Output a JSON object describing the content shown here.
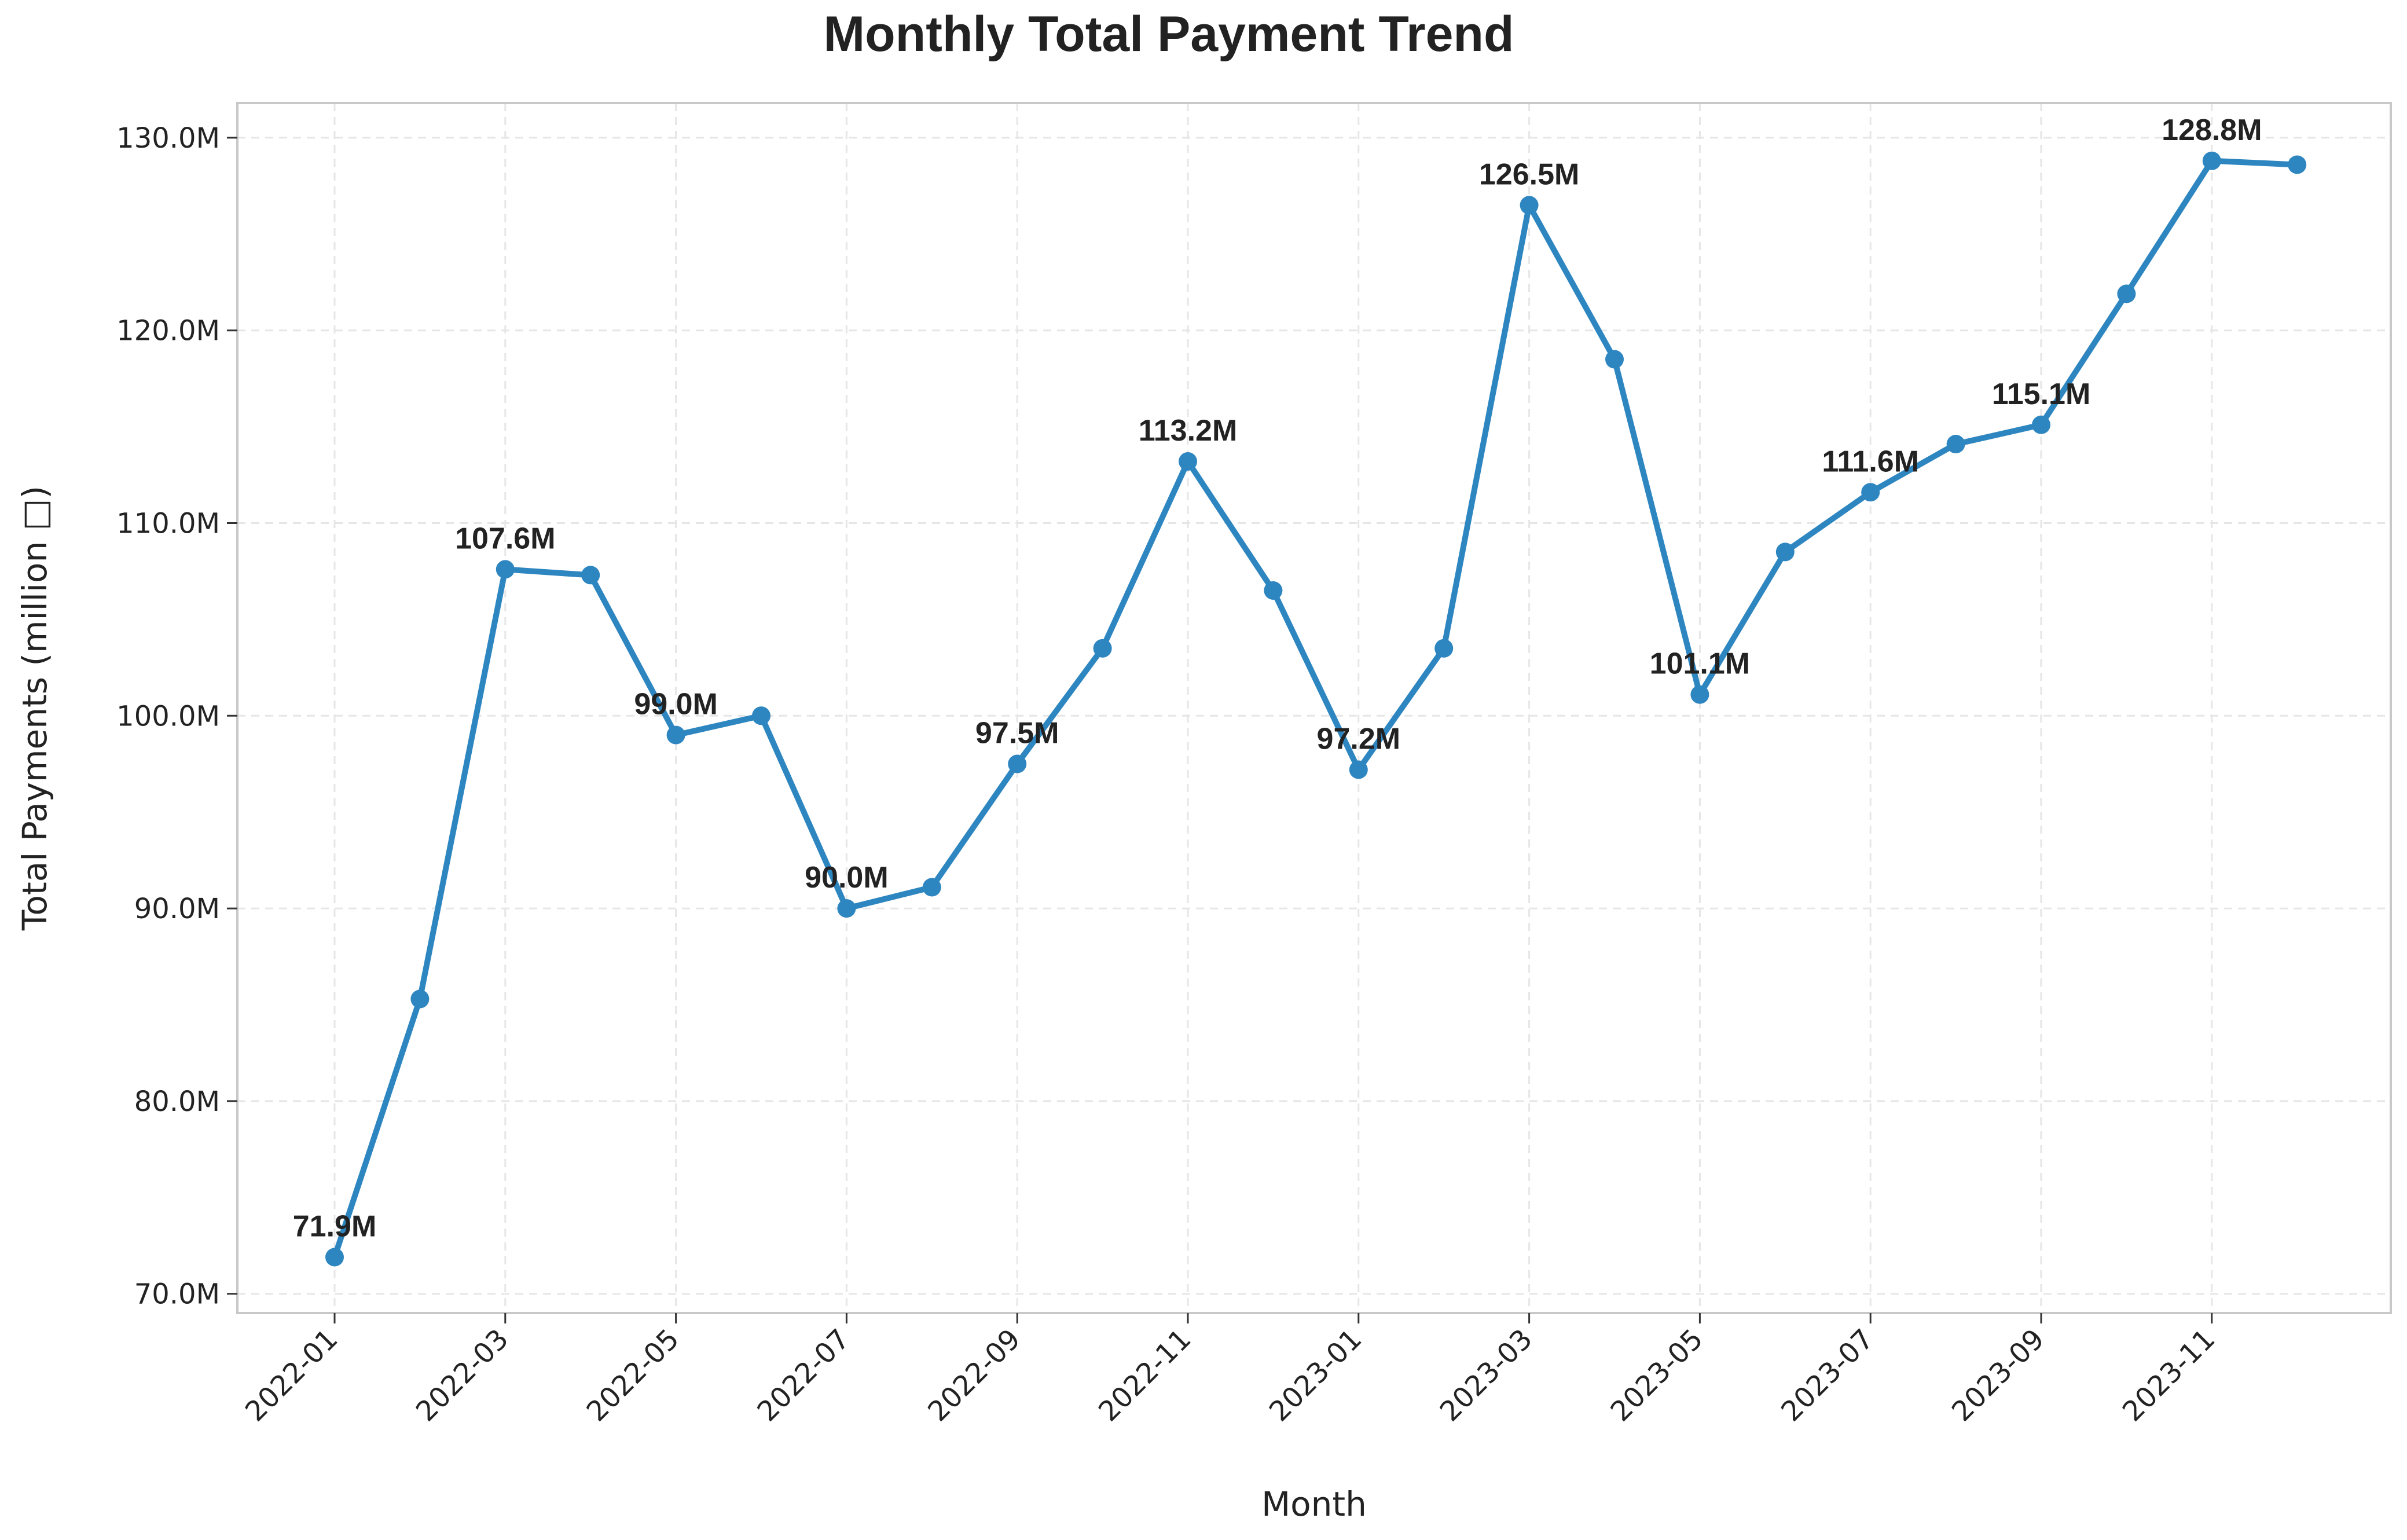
{
  "colors": {
    "line": "#2e86c1",
    "marker": "#2e86c1",
    "text": "#222222",
    "grid": "#e6e6e6",
    "frame": "#c8c8c8"
  },
  "chart_data": {
    "type": "line",
    "title": "Monthly Total Payment Trend",
    "xlabel": "Month",
    "ylabel": "Total Payments (million □)",
    "ylim": [
      69.0,
      131.8
    ],
    "grid": true,
    "y_ticks": [
      {
        "value": 70,
        "label": "70.0M"
      },
      {
        "value": 80,
        "label": "80.0M"
      },
      {
        "value": 90,
        "label": "90.0M"
      },
      {
        "value": 100,
        "label": "100.0M"
      },
      {
        "value": 110,
        "label": "110.0M"
      },
      {
        "value": 120,
        "label": "120.0M"
      },
      {
        "value": 130,
        "label": "130.0M"
      }
    ],
    "x_ticks": [
      "2022-01",
      "2022-03",
      "2022-05",
      "2022-07",
      "2022-09",
      "2022-11",
      "2023-01",
      "2023-03",
      "2023-05",
      "2023-07",
      "2023-09",
      "2023-11"
    ],
    "x": [
      "2022-01",
      "2022-02",
      "2022-03",
      "2022-04",
      "2022-05",
      "2022-06",
      "2022-07",
      "2022-08",
      "2022-09",
      "2022-10",
      "2022-11",
      "2022-12",
      "2023-01",
      "2023-02",
      "2023-03",
      "2023-04",
      "2023-05",
      "2023-06",
      "2023-07",
      "2023-08",
      "2023-09",
      "2023-10",
      "2023-11",
      "2023-12"
    ],
    "series": [
      {
        "values": [
          71.9,
          85.3,
          107.6,
          107.3,
          99.0,
          100.0,
          90.0,
          91.1,
          97.5,
          103.5,
          113.2,
          106.5,
          97.2,
          103.5,
          126.5,
          118.5,
          101.1,
          108.5,
          111.6,
          114.1,
          115.1,
          121.9,
          128.8,
          128.6
        ]
      }
    ],
    "data_labels": [
      {
        "x": "2022-01",
        "label": "71.9M"
      },
      {
        "x": "2022-03",
        "label": "107.6M"
      },
      {
        "x": "2022-05",
        "label": "99.0M"
      },
      {
        "x": "2022-07",
        "label": "90.0M"
      },
      {
        "x": "2022-09",
        "label": "97.5M"
      },
      {
        "x": "2022-11",
        "label": "113.2M"
      },
      {
        "x": "2023-01",
        "label": "97.2M"
      },
      {
        "x": "2023-03",
        "label": "126.5M"
      },
      {
        "x": "2023-05",
        "label": "101.1M"
      },
      {
        "x": "2023-07",
        "label": "111.6M"
      },
      {
        "x": "2023-09",
        "label": "115.1M"
      },
      {
        "x": "2023-11",
        "label": "128.8M"
      }
    ]
  }
}
